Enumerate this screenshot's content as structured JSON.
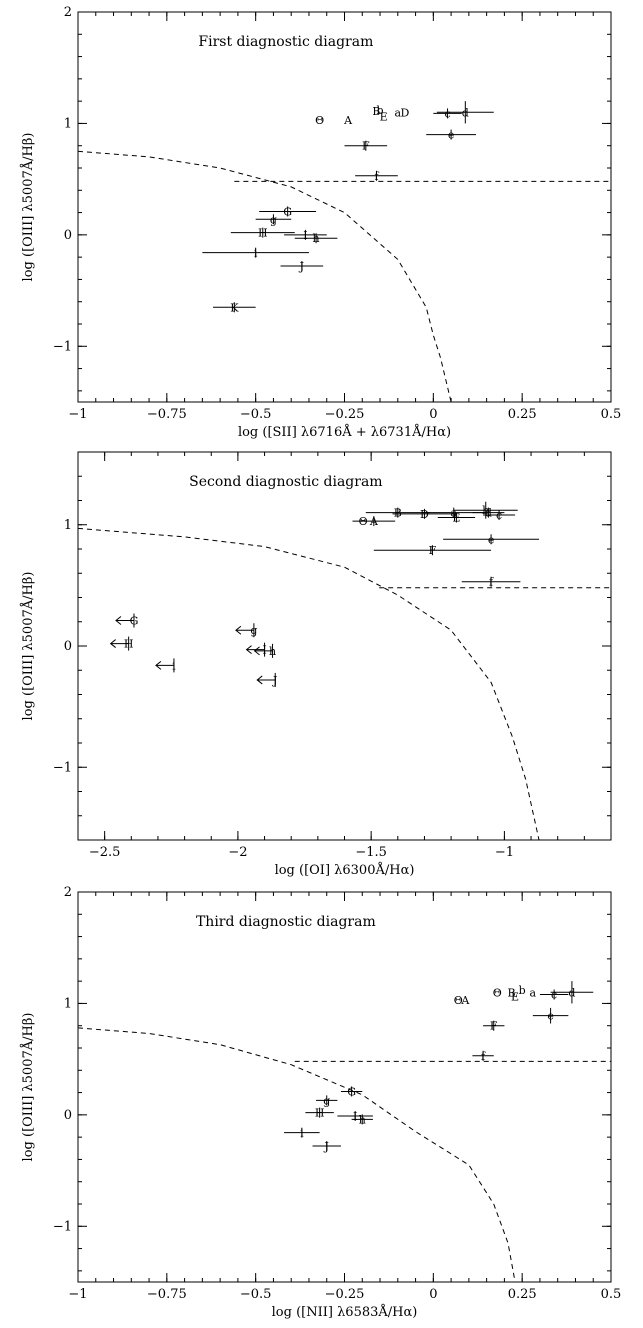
{
  "chart_data": [
    {
      "type": "scatter",
      "title": "First diagnostic diagram",
      "xlabel": "log ([SII] λ6716Å + λ6731Å/Hα)",
      "ylabel": "log ([OIII] λ5007Å/Hβ)",
      "xlim": [
        -1,
        0.5
      ],
      "ylim": [
        -1.5,
        2
      ],
      "xticks": [
        -1,
        -0.75,
        -0.5,
        -0.25,
        0,
        0.25,
        0.5
      ],
      "xtick_labels": [
        "−1",
        "−0.75",
        "−0.5",
        "−0.25",
        "0",
        "0.25",
        "0.5"
      ],
      "yticks": [
        -1,
        0,
        1,
        2
      ],
      "ytick_labels": [
        "−1",
        "0",
        "1",
        "2"
      ],
      "curve": [
        [
          -1,
          0.75
        ],
        [
          -0.8,
          0.7
        ],
        [
          -0.6,
          0.6
        ],
        [
          -0.4,
          0.43
        ],
        [
          -0.25,
          0.2
        ],
        [
          -0.1,
          -0.22
        ],
        [
          -0.02,
          -0.65
        ],
        [
          0,
          -0.9
        ],
        [
          0.02,
          -1.1
        ],
        [
          0.05,
          -1.5
        ]
      ],
      "hline": {
        "y": 0.48,
        "x_from": -0.56,
        "x_to": 0.5
      },
      "points": [
        {
          "label": "A",
          "x": -0.24,
          "y": 1.03
        },
        {
          "label": "B",
          "x": -0.16,
          "y": 1.11
        },
        {
          "label": "b",
          "x": -0.15,
          "y": 1.12
        },
        {
          "label": "D",
          "x": -0.08,
          "y": 1.1
        },
        {
          "label": "E",
          "x": -0.14,
          "y": 1.06
        },
        {
          "label": "a",
          "x": -0.1,
          "y": 1.1
        },
        {
          "label": "Θ",
          "x": -0.32,
          "y": 1.03
        },
        {
          "label": "c",
          "x": 0.04,
          "y": 1.09,
          "xerr": 0.04
        },
        {
          "label": "d",
          "x": 0.09,
          "y": 1.1,
          "xerr": 0.08,
          "yerr": 0.1
        },
        {
          "label": "e",
          "x": 0.05,
          "y": 0.9,
          "xerr": 0.07
        },
        {
          "label": "F",
          "x": -0.19,
          "y": 0.8,
          "xerr": 0.06
        },
        {
          "label": "f",
          "x": -0.16,
          "y": 0.53,
          "xerr": 0.06
        },
        {
          "label": "G",
          "x": -0.41,
          "y": 0.21,
          "xerr": 0.08
        },
        {
          "label": "g",
          "x": -0.45,
          "y": 0.14,
          "xerr": 0.05
        },
        {
          "label": "H",
          "x": -0.48,
          "y": 0.02,
          "xerr": 0.09
        },
        {
          "label": "I",
          "x": -0.36,
          "y": 0.0,
          "xerr": 0.06
        },
        {
          "label": "h",
          "x": -0.33,
          "y": -0.03,
          "xerr": 0.06
        },
        {
          "label": "i",
          "x": -0.5,
          "y": -0.16,
          "xerr": 0.15
        },
        {
          "label": "J",
          "x": -0.37,
          "y": -0.28,
          "xerr": 0.06
        },
        {
          "label": "K",
          "x": -0.56,
          "y": -0.65,
          "xerr": 0.06
        }
      ]
    },
    {
      "type": "scatter",
      "title": "Second diagnostic diagram",
      "xlabel": "log ([OI] λ6300Å/Hα)",
      "ylabel": "log ([OIII] λ5007Å/Hβ)",
      "xlim": [
        -2.6,
        -0.6
      ],
      "ylim": [
        -1.6,
        1.6
      ],
      "xticks": [
        -2.5,
        -2,
        -1.5,
        -1
      ],
      "xtick_labels": [
        "−2.5",
        "−2",
        "−1.5",
        "−1"
      ],
      "yticks": [
        -1,
        0,
        1
      ],
      "ytick_labels": [
        "−1",
        "0",
        "1"
      ],
      "curve": [
        [
          -2.6,
          0.97
        ],
        [
          -2.2,
          0.9
        ],
        [
          -1.9,
          0.82
        ],
        [
          -1.6,
          0.65
        ],
        [
          -1.4,
          0.42
        ],
        [
          -1.2,
          0.13
        ],
        [
          -1.05,
          -0.3
        ],
        [
          -0.97,
          -0.75
        ],
        [
          -0.92,
          -1.1
        ],
        [
          -0.87,
          -1.6
        ]
      ],
      "hline": {
        "y": 0.48,
        "x_from": -1.47,
        "x_to": -0.6
      },
      "points": [
        {
          "label": "Θ",
          "x": -1.53,
          "y": 1.03
        },
        {
          "label": "A",
          "x": -1.49,
          "y": 1.03,
          "xerr": 0.08
        },
        {
          "label": "B",
          "x": -1.4,
          "y": 1.1,
          "xerr": 0.12
        },
        {
          "label": "D",
          "x": -1.3,
          "y": 1.09,
          "xerr": 0.12
        },
        {
          "label": "a",
          "x": -1.19,
          "y": 1.1,
          "xerr": 0.12
        },
        {
          "label": "E",
          "x": -1.18,
          "y": 1.06,
          "xerr": 0.07
        },
        {
          "label": "b",
          "x": -1.07,
          "y": 1.12,
          "xerr": 0.12,
          "yerr": 0.07
        },
        {
          "label": "d",
          "x": -1.06,
          "y": 1.1,
          "xerr": 0.06
        },
        {
          "label": "c",
          "x": -1.02,
          "y": 1.08,
          "xerr": 0.06
        },
        {
          "label": "e",
          "x": -1.05,
          "y": 0.88,
          "xerr": 0.18
        },
        {
          "label": "F",
          "x": -1.27,
          "y": 0.79,
          "xerr": 0.22
        },
        {
          "label": "f",
          "x": -1.05,
          "y": 0.53,
          "xerr": 0.11
        },
        {
          "label": "G",
          "x": -2.39,
          "y": 0.21,
          "upper": true
        },
        {
          "label": "H",
          "x": -2.41,
          "y": 0.02,
          "upper": true
        },
        {
          "label": "i",
          "x": -2.24,
          "y": -0.16,
          "upper": true
        },
        {
          "label": "g",
          "x": -1.94,
          "y": 0.13,
          "upper": true
        },
        {
          "label": "I",
          "x": -1.9,
          "y": -0.03,
          "upper": true
        },
        {
          "label": "h",
          "x": -1.87,
          "y": -0.04,
          "upper": true
        },
        {
          "label": "J",
          "x": -1.86,
          "y": -0.28,
          "upper": true
        }
      ]
    },
    {
      "type": "scatter",
      "title": "Third diagnostic diagram",
      "xlabel": "log ([NII] λ6583Å/Hα)",
      "ylabel": "log ([OIII] λ5007Å/Hβ)",
      "xlim": [
        -1,
        0.5
      ],
      "ylim": [
        -1.5,
        2
      ],
      "xticks": [
        -1,
        -0.75,
        -0.5,
        -0.25,
        0,
        0.25,
        0.5
      ],
      "xtick_labels": [
        "−1",
        "−0.75",
        "−0.5",
        "−0.25",
        "0",
        "0.25",
        "0.5"
      ],
      "yticks": [
        -1,
        0,
        1,
        2
      ],
      "ytick_labels": [
        "−1",
        "0",
        "1",
        "2"
      ],
      "curve": [
        [
          -1,
          0.78
        ],
        [
          -0.8,
          0.73
        ],
        [
          -0.6,
          0.63
        ],
        [
          -0.4,
          0.45
        ],
        [
          -0.2,
          0.18
        ],
        [
          -0.05,
          -0.15
        ],
        [
          0.1,
          -0.45
        ],
        [
          0.17,
          -0.8
        ],
        [
          0.21,
          -1.15
        ],
        [
          0.23,
          -1.5
        ]
      ],
      "hline": {
        "y": 0.48,
        "x_from": -0.39,
        "x_to": 0.5
      },
      "points": [
        {
          "label": "Θ",
          "x": 0.07,
          "y": 1.03
        },
        {
          "label": "A",
          "x": 0.09,
          "y": 1.03
        },
        {
          "label": "Θ",
          "x": 0.18,
          "y": 1.1
        },
        {
          "label": "B",
          "x": 0.22,
          "y": 1.1
        },
        {
          "label": "b",
          "x": 0.25,
          "y": 1.12
        },
        {
          "label": "a",
          "x": 0.28,
          "y": 1.1
        },
        {
          "label": "E",
          "x": 0.23,
          "y": 1.06
        },
        {
          "label": "c",
          "x": 0.34,
          "y": 1.08,
          "xerr": 0.04
        },
        {
          "label": "d",
          "x": 0.39,
          "y": 1.1,
          "xerr": 0.06,
          "yerr": 0.1
        },
        {
          "label": "e",
          "x": 0.33,
          "y": 0.89,
          "xerr": 0.05,
          "yerr": 0.07
        },
        {
          "label": "F",
          "x": 0.17,
          "y": 0.8,
          "xerr": 0.03
        },
        {
          "label": "f",
          "x": 0.14,
          "y": 0.53,
          "xerr": 0.03
        },
        {
          "label": "G",
          "x": -0.23,
          "y": 0.21,
          "xerr": 0.03
        },
        {
          "label": "g",
          "x": -0.3,
          "y": 0.13,
          "xerr": 0.03
        },
        {
          "label": "H",
          "x": -0.32,
          "y": 0.02,
          "xerr": 0.04
        },
        {
          "label": "I",
          "x": -0.22,
          "y": -0.01,
          "xerr": 0.05
        },
        {
          "label": "h",
          "x": -0.2,
          "y": -0.04,
          "xerr": 0.03
        },
        {
          "label": "i",
          "x": -0.37,
          "y": -0.16,
          "xerr": 0.05
        },
        {
          "label": "J",
          "x": -0.3,
          "y": -0.28,
          "xerr": 0.04
        }
      ]
    }
  ]
}
